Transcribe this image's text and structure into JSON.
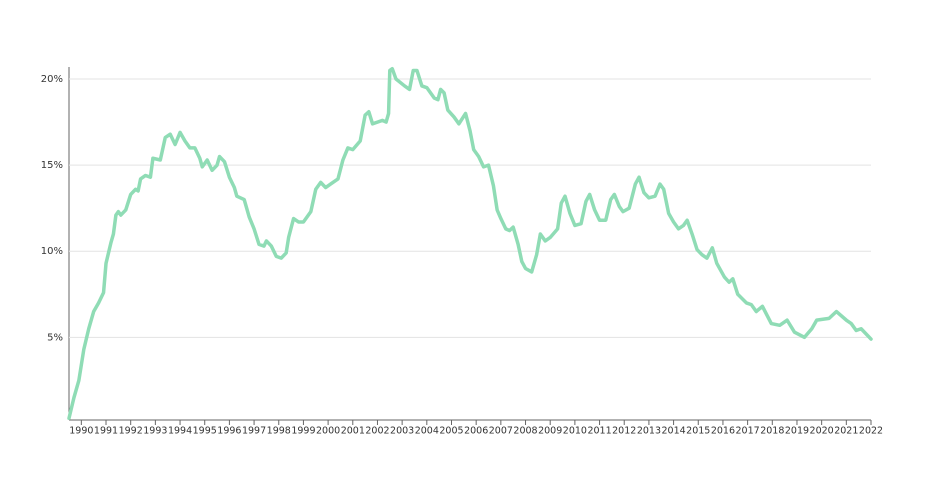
{
  "chart_data": {
    "type": "line",
    "color": "#8fdcb5",
    "x": [
      1989.5,
      1989.7,
      1989.9,
      1990.1,
      1990.3,
      1990.5,
      1990.7,
      1990.9,
      1991.0,
      1991.2,
      1991.3,
      1991.4,
      1991.5,
      1991.6,
      1991.8,
      1992.0,
      1992.2,
      1992.3,
      1992.4,
      1992.6,
      1992.8,
      1992.9,
      1993.2,
      1993.4,
      1993.6,
      1993.8,
      1994.0,
      1994.2,
      1994.4,
      1994.6,
      1994.8,
      1994.9,
      1995.1,
      1995.3,
      1995.5,
      1995.6,
      1995.8,
      1996.0,
      1996.2,
      1996.3,
      1996.6,
      1996.8,
      1997.0,
      1997.2,
      1997.4,
      1997.5,
      1997.7,
      1997.9,
      1998.1,
      1998.3,
      1998.4,
      1998.6,
      1998.8,
      1999.0,
      1999.3,
      1999.5,
      1999.7,
      1999.9,
      2000.1,
      2000.4,
      2000.6,
      2000.8,
      2001.0,
      2001.3,
      2001.5,
      2001.65,
      2001.8,
      2002.0,
      2002.2,
      2002.35,
      2002.45,
      2002.5,
      2002.6,
      2002.75,
      2003.1,
      2003.3,
      2003.45,
      2003.6,
      2003.8,
      2004.0,
      2004.3,
      2004.45,
      2004.56,
      2004.7,
      2004.85,
      2005.1,
      2005.3,
      2005.57,
      2005.75,
      2005.9,
      2006.1,
      2006.3,
      2006.5,
      2006.7,
      2006.85,
      2007.0,
      2007.2,
      2007.35,
      2007.5,
      2007.7,
      2007.85,
      2008.0,
      2008.25,
      2008.45,
      2008.6,
      2008.8,
      2009.0,
      2009.3,
      2009.45,
      2009.6,
      2009.8,
      2010.0,
      2010.25,
      2010.45,
      2010.6,
      2010.8,
      2011.0,
      2011.25,
      2011.45,
      2011.6,
      2011.8,
      2011.95,
      2012.2,
      2012.45,
      2012.6,
      2012.8,
      2013.0,
      2013.25,
      2013.45,
      2013.6,
      2013.8,
      2014.0,
      2014.2,
      2014.4,
      2014.55,
      2014.75,
      2014.95,
      2015.15,
      2015.35,
      2015.57,
      2015.75,
      2016.06,
      2016.25,
      2016.4,
      2016.6,
      2016.95,
      2017.15,
      2017.35,
      2017.6,
      2017.96,
      2018.3,
      2018.6,
      2018.9,
      2019.3,
      2019.6,
      2019.8,
      2020.3,
      2020.6,
      2021.0,
      2021.2,
      2021.4,
      2021.6,
      2022.0
    ],
    "values": [
      0.3,
      1.5,
      2.5,
      4.3,
      5.5,
      6.5,
      7,
      7.6,
      9.3,
      10.5,
      11,
      12.1,
      12.3,
      12.1,
      12.4,
      13.3,
      13.6,
      13.5,
      14.2,
      14.4,
      14.3,
      15.4,
      15.3,
      16.6,
      16.8,
      16.2,
      16.9,
      16.4,
      16.0,
      16.0,
      15.4,
      14.9,
      15.3,
      14.7,
      15.0,
      15.5,
      15.2,
      14.3,
      13.7,
      13.2,
      13.0,
      12.0,
      11.3,
      10.4,
      10.3,
      10.6,
      10.3,
      9.7,
      9.6,
      9.9,
      10.8,
      11.9,
      11.7,
      11.7,
      12.3,
      13.6,
      14.0,
      13.7,
      13.9,
      14.2,
      15.3,
      16.0,
      15.9,
      16.4,
      17.9,
      18.1,
      17.4,
      17.5,
      17.6,
      17.5,
      18.0,
      20.5,
      20.6,
      20.0,
      19.6,
      19.4,
      20.5,
      20.5,
      19.6,
      19.5,
      18.9,
      18.8,
      19.4,
      19.2,
      18.2,
      17.8,
      17.4,
      18.0,
      17.0,
      15.9,
      15.5,
      14.9,
      15.0,
      13.8,
      12.4,
      11.9,
      11.3,
      11.2,
      11.4,
      10.4,
      9.4,
      9.0,
      8.8,
      9.8,
      11.0,
      10.6,
      10.8,
      11.3,
      12.8,
      13.2,
      12.2,
      11.5,
      11.6,
      12.9,
      13.3,
      12.4,
      11.8,
      11.8,
      13.0,
      13.3,
      12.6,
      12.3,
      12.5,
      13.9,
      14.3,
      13.4,
      13.1,
      13.2,
      13.9,
      13.6,
      12.2,
      11.7,
      11.3,
      11.5,
      11.8,
      11.0,
      10.1,
      9.8,
      9.6,
      10.2,
      9.3,
      8.5,
      8.2,
      8.4,
      7.5,
      7.0,
      6.9,
      6.5,
      6.8,
      5.8,
      5.7,
      6.0,
      5.3,
      5.0,
      5.5,
      6.0,
      6.1,
      6.5,
      6.0,
      5.8,
      5.4,
      5.5,
      4.9
    ],
    "xlim": [
      1989.5,
      2022
    ],
    "xticks": [
      1990,
      1991,
      1992,
      1993,
      1994,
      1995,
      1996,
      1997,
      1998,
      1999,
      2000,
      2001,
      2002,
      2003,
      2004,
      2005,
      2006,
      2007,
      2008,
      2009,
      2010,
      2011,
      2012,
      2013,
      2014,
      2015,
      2016,
      2017,
      2018,
      2019,
      2020,
      2021,
      2022
    ],
    "ylim": [
      0.2,
      20.7
    ],
    "yticks": [
      {
        "value": 5,
        "label": "5%"
      },
      {
        "value": 10,
        "label": "10%"
      },
      {
        "value": 15,
        "label": "15%"
      },
      {
        "value": 20,
        "label": "20%"
      }
    ],
    "grid": true
  }
}
